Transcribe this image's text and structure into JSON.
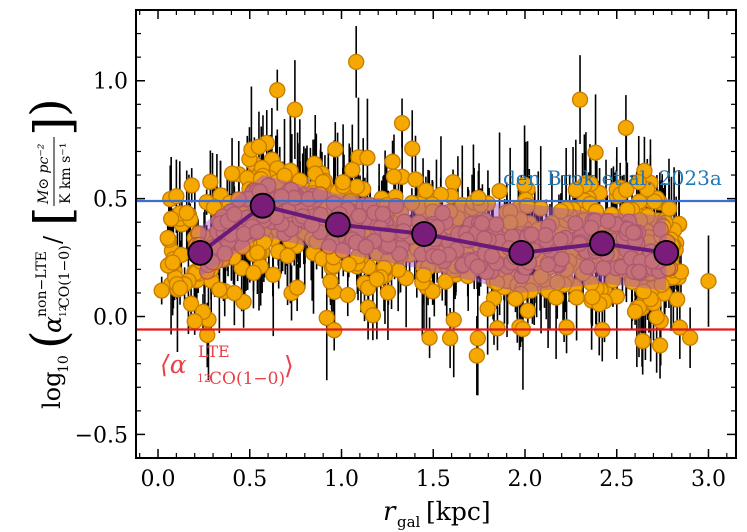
{
  "chart_data": {
    "type": "scatter",
    "xlabel": "r_gal [kpc]",
    "ylabel": "log10(α_12CO(1−0)^non−LTE / [M⊙ pc⁻² / K km s⁻¹])",
    "xlim": [
      -0.12,
      3.15
    ],
    "ylim": [
      -0.6,
      1.3
    ],
    "xticks": [
      "0.0",
      "0.5",
      "1.0",
      "1.5",
      "2.0",
      "2.5",
      "3.0"
    ],
    "yticks": [
      "1.0",
      "0.5",
      "0.0",
      "−0.5"
    ],
    "grid": false,
    "reference_lines": [
      {
        "label": "den Brok et al. 2023a",
        "y": 0.49,
        "color": "#3a6fd1",
        "label_color": "#1f77b4"
      },
      {
        "label": "⟨α LTE 12CO(1−0)⟩",
        "y": -0.055,
        "color": "#e31a1c",
        "label_color": "#e8414a"
      }
    ],
    "binned_median": {
      "x": [
        0.23,
        0.57,
        0.98,
        1.45,
        1.98,
        2.42,
        2.77
      ],
      "y": [
        0.27,
        0.47,
        0.39,
        0.35,
        0.27,
        0.31,
        0.27
      ],
      "band_lower": [
        0.17,
        0.34,
        0.27,
        0.2,
        0.1,
        0.14,
        0.11
      ],
      "band_upper": [
        0.38,
        0.6,
        0.52,
        0.48,
        0.48,
        0.44,
        0.43
      ],
      "color": "#7a1d7a"
    },
    "scatter_points": {
      "color": "#f5a800",
      "edge": "#c67c00",
      "error_bar_color": "#000000",
      "approx_count": 700,
      "representative": [
        {
          "x": 0.02,
          "y": 0.11
        },
        {
          "x": 0.1,
          "y": 0.51
        },
        {
          "x": 0.12,
          "y": 0.12
        },
        {
          "x": 0.2,
          "y": -0.02
        },
        {
          "x": 0.55,
          "y": 0.72
        },
        {
          "x": 0.65,
          "y": 0.96
        },
        {
          "x": 1.08,
          "y": 1.08
        },
        {
          "x": 1.33,
          "y": 0.82
        },
        {
          "x": 1.48,
          "y": -0.09
        },
        {
          "x": 1.85,
          "y": -0.05
        },
        {
          "x": 2.3,
          "y": 0.92
        },
        {
          "x": 2.55,
          "y": 0.8
        },
        {
          "x": 2.62,
          "y": 0.57
        },
        {
          "x": 2.85,
          "y": 0.19
        },
        {
          "x": 2.9,
          "y": -0.09
        },
        {
          "x": 3.0,
          "y": 0.15
        }
      ]
    },
    "annotations": [
      "den Brok et al. 2023a",
      "⟨α LTE 12CO(1−0)⟩"
    ]
  },
  "labels": {
    "x_axis": "[kpc]",
    "x_axis_var": "r",
    "x_axis_sub": "gal",
    "y_log": "log",
    "y_log_sub": "10",
    "y_alpha": "α",
    "y_alpha_sup": "non−LTE",
    "y_alpha_sub": "12",
    "y_alpha_sub2": "CO(1−0)",
    "y_slash": "/",
    "y_unit_num": "M⊙ pc⁻²",
    "y_unit_den": "K km s⁻¹",
    "ref_label": "den Brok et al. 2023a",
    "lte_alpha": "⟨α",
    "lte_sup": "LTE",
    "lte_sub_a": "12",
    "lte_sub_b": "CO(1−0)",
    "lte_close": "⟩"
  }
}
